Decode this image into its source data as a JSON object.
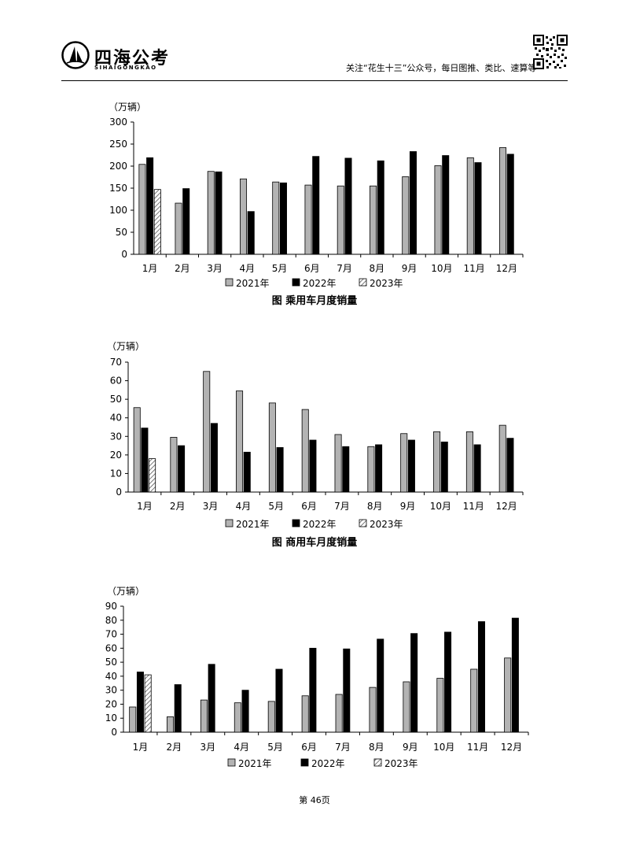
{
  "header": {
    "brand_name": "四海公考",
    "brand_sub": "SIHAIGONGKAO",
    "slogan": "关注“花生十三”公众号，每日图推、类比、速算等"
  },
  "footer": {
    "page_label": "第 46页"
  },
  "colors": {
    "y2021": "#b3b3b3",
    "y2022": "#000000",
    "y2023_hatch": "#555555"
  },
  "chart_data": [
    {
      "type": "bar",
      "unit_label": "（万辆）",
      "caption": "图    乘用车月度销量",
      "categories": [
        "1月",
        "2月",
        "3月",
        "4月",
        "5月",
        "6月",
        "7月",
        "8月",
        "9月",
        "10月",
        "11月",
        "12月"
      ],
      "yticks": [
        "0",
        "50",
        "100",
        "150",
        "200",
        "250",
        "300"
      ],
      "ylim": [
        0,
        300
      ],
      "legend": [
        "2021年",
        "2022年",
        "2023年"
      ],
      "series": [
        {
          "name": "2021年",
          "values": [
            204,
            116,
            188,
            171,
            164,
            157,
            155,
            155,
            176,
            201,
            219,
            242
          ]
        },
        {
          "name": "2022年",
          "values": [
            219,
            149,
            187,
            97,
            162,
            222,
            218,
            212,
            233,
            224,
            208,
            227
          ]
        },
        {
          "name": "2023年",
          "values": [
            147,
            null,
            null,
            null,
            null,
            null,
            null,
            null,
            null,
            null,
            null,
            null
          ]
        }
      ]
    },
    {
      "type": "bar",
      "unit_label": "（万辆）",
      "caption": "图    商用车月度销量",
      "categories": [
        "1月",
        "2月",
        "3月",
        "4月",
        "5月",
        "6月",
        "7月",
        "8月",
        "9月",
        "10月",
        "11月",
        "12月"
      ],
      "yticks": [
        "0",
        "10",
        "20",
        "30",
        "40",
        "50",
        "60",
        "70"
      ],
      "ylim": [
        0,
        70
      ],
      "legend": [
        "2021年",
        "2022年",
        "2023年"
      ],
      "series": [
        {
          "name": "2021年",
          "values": [
            45.5,
            29.5,
            65,
            54.5,
            48,
            44.5,
            31,
            24.5,
            31.5,
            32.5,
            32.5,
            36
          ]
        },
        {
          "name": "2022年",
          "values": [
            34.5,
            25,
            37,
            21.5,
            24,
            28,
            24.5,
            25.5,
            28,
            27,
            25.5,
            29
          ]
        },
        {
          "name": "2023年",
          "values": [
            18,
            null,
            null,
            null,
            null,
            null,
            null,
            null,
            null,
            null,
            null,
            null
          ]
        }
      ]
    },
    {
      "type": "bar",
      "unit_label": "（万辆）",
      "caption": "",
      "categories": [
        "1月",
        "2月",
        "3月",
        "4月",
        "5月",
        "6月",
        "7月",
        "8月",
        "9月",
        "10月",
        "11月",
        "12月"
      ],
      "yticks": [
        "0",
        "10",
        "20",
        "30",
        "40",
        "50",
        "60",
        "70",
        "80",
        "90"
      ],
      "ylim": [
        0,
        90
      ],
      "legend": [
        "2021年",
        "2022年",
        "2023年"
      ],
      "series": [
        {
          "name": "2021年",
          "values": [
            18,
            11,
            23,
            21,
            22,
            26,
            27,
            32,
            36,
            38.5,
            45,
            53
          ]
        },
        {
          "name": "2022年",
          "values": [
            43,
            34,
            48.5,
            30,
            45,
            60,
            59.5,
            66.5,
            70.5,
            71.5,
            79,
            81.5
          ]
        },
        {
          "name": "2023年",
          "values": [
            41,
            null,
            null,
            null,
            null,
            null,
            null,
            null,
            null,
            null,
            null,
            null
          ]
        }
      ]
    }
  ]
}
